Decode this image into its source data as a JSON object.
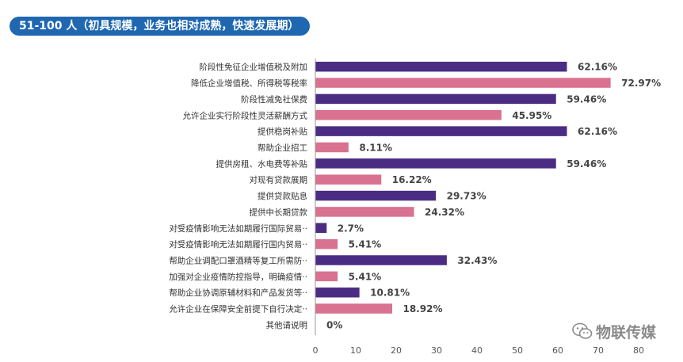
{
  "header": {
    "title": "51-100 人（初具规模，业务也相对成熟，快速发展期）"
  },
  "watermark": {
    "text": "物联传媒",
    "icon": "wechat-icon"
  },
  "colors": {
    "purple": "#4a2d83",
    "pink": "#d97190",
    "title_bg": "#1f67b1",
    "axis": "#999999"
  },
  "chart_data": {
    "type": "bar",
    "orientation": "horizontal",
    "title": "51-100 人（初具规模，业务也相对成熟，快速发展期）",
    "categories": [
      "阶段性免征企业增值税及附加",
      "降低企业增值税、所得税等税率",
      "阶段性减免社保费",
      "允许企业实行阶段性灵活薪酬方式",
      "提供稳岗补贴",
      "帮助企业招工",
      "提供房租、水电费等补贴",
      "对现有贷款展期",
      "提供贷款贴息",
      "提供中长期贷款",
      "对受疫情影响无法如期履行国际贸易··",
      "对受疫情影响无法如期履行国内贸易··",
      "帮助企业调配口罩酒精等复工所需防··",
      "加强对企业疫情防控指导，明确疫情··",
      "帮助企业协调原辅材料和产品发货等··",
      "允许企业在保障安全前提下自行决定··",
      "其他请说明"
    ],
    "values": [
      62.16,
      72.97,
      59.46,
      45.95,
      62.16,
      8.11,
      59.46,
      16.22,
      29.73,
      24.32,
      2.7,
      5.41,
      32.43,
      5.41,
      10.81,
      18.92,
      0
    ],
    "value_labels": [
      "62.16%",
      "72.97%",
      "59.46%",
      "45.95%",
      "62.16%",
      "8.11%",
      "59.46%",
      "16.22%",
      "29.73%",
      "24.32%",
      "2.7%",
      "5.41%",
      "32.43%",
      "5.41%",
      "10.81%",
      "18.92%",
      "0%"
    ],
    "bar_colors": [
      "purple",
      "pink",
      "purple",
      "pink",
      "purple",
      "pink",
      "purple",
      "pink",
      "purple",
      "pink",
      "purple",
      "pink",
      "purple",
      "pink",
      "purple",
      "pink",
      "purple"
    ],
    "xlim": [
      0,
      80
    ],
    "xticks": [
      0,
      10,
      20,
      30,
      40,
      50,
      60,
      70,
      80
    ],
    "xlabel": "",
    "ylabel": "",
    "grid": false,
    "legend": "none"
  }
}
